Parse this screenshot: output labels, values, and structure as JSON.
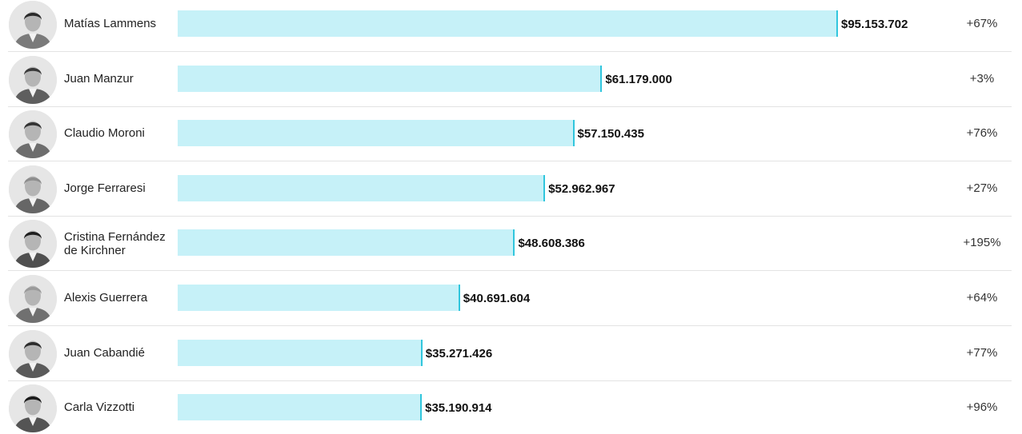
{
  "chart_data": {
    "type": "bar",
    "orientation": "horizontal",
    "categories": [
      "Matías Lammens",
      "Juan Manzur",
      "Claudio Moroni",
      "Jorge Ferraresi",
      "Cristina Fernández de Kirchner",
      "Alexis Guerrera",
      "Juan Cabandié",
      "Carla Vizzotti"
    ],
    "values": [
      95153702,
      61179000,
      57150435,
      52962967,
      48608386,
      40691604,
      35271426,
      35190914
    ],
    "value_labels": [
      "$95.153.702",
      "$61.179.000",
      "$57.150.435",
      "$52.962.967",
      "$48.608.386",
      "$40.691.604",
      "$35.271.426",
      "$35.190.914"
    ],
    "change_labels": [
      "+67%",
      "+3%",
      "+76%",
      "+27%",
      "+195%",
      "+64%",
      "+77%",
      "+96%"
    ],
    "xlim": [
      0,
      95153702
    ],
    "grid": false,
    "colors": {
      "bar_fill": "#c6f1f8",
      "bar_edge": "#31c6dd"
    }
  }
}
